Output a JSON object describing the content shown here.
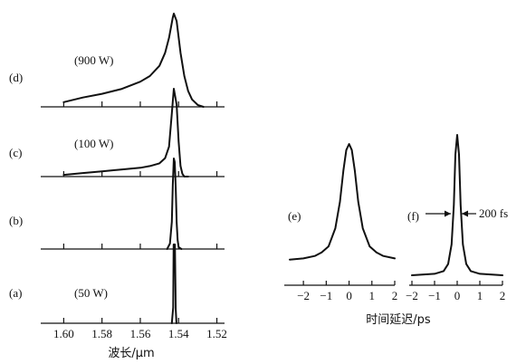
{
  "chart_data": [
    {
      "type": "line",
      "name": "spectra",
      "xlabel": "波长/μm",
      "xlim": [
        1.612,
        1.516
      ],
      "x_reversed": true,
      "x_ticks": [
        1.6,
        1.58,
        1.56,
        1.54,
        1.52
      ],
      "x_tick_labels": [
        "1.60",
        "1.58",
        "1.56",
        "1.54",
        "1.52"
      ],
      "panels": [
        {
          "label": "(d)",
          "annotation": "(900 W)",
          "x": [
            1.6,
            1.59,
            1.58,
            1.57,
            1.56,
            1.555,
            1.55,
            1.547,
            1.545,
            1.543,
            1.5425,
            1.541,
            1.539,
            1.537,
            1.535,
            1.533,
            1.53,
            1.527
          ],
          "y": [
            0.05,
            0.1,
            0.14,
            0.19,
            0.27,
            0.33,
            0.44,
            0.58,
            0.74,
            0.96,
            1.0,
            0.92,
            0.58,
            0.33,
            0.17,
            0.08,
            0.02,
            0.0
          ]
        },
        {
          "label": "(c)",
          "annotation": "(100 W)",
          "x": [
            1.6,
            1.59,
            1.58,
            1.57,
            1.56,
            1.555,
            1.55,
            1.547,
            1.545,
            1.5435,
            1.5425,
            1.541,
            1.54,
            1.539,
            1.538,
            1.537,
            1.535
          ],
          "y": [
            0.02,
            0.04,
            0.06,
            0.08,
            0.1,
            0.12,
            0.15,
            0.21,
            0.34,
            0.72,
            1.0,
            0.82,
            0.4,
            0.12,
            0.03,
            0.0,
            0.0
          ]
        },
        {
          "label": "(b)",
          "annotation": "",
          "x": [
            1.546,
            1.5445,
            1.5435,
            1.543,
            1.5425,
            1.542,
            1.5415,
            1.541,
            1.5405,
            1.54,
            1.5385
          ],
          "y": [
            0.0,
            0.06,
            0.3,
            0.72,
            1.0,
            0.96,
            0.68,
            0.3,
            0.1,
            0.02,
            0.0
          ]
        },
        {
          "label": "(a)",
          "annotation": "(50 W)",
          "x": [
            1.5435,
            1.5428,
            1.5426,
            1.5422,
            1.5419,
            1.5415,
            1.5411
          ],
          "y": [
            0.0,
            0.2,
            1.0,
            1.0,
            1.0,
            0.18,
            0.0
          ]
        }
      ]
    },
    {
      "type": "line",
      "name": "autocorrelation",
      "xlabel": "时间延迟/ps",
      "x_ticks": [
        -2,
        -1,
        0,
        1,
        2
      ],
      "x_tick_labels": [
        "−2",
        "−1",
        "0",
        "1",
        "2"
      ],
      "panels": [
        {
          "label": "(e)",
          "xlim": [
            -2.6,
            2.0
          ],
          "x": [
            -2.6,
            -2.0,
            -1.5,
            -1.2,
            -0.9,
            -0.6,
            -0.4,
            -0.25,
            -0.12,
            0.0,
            0.12,
            0.25,
            0.4,
            0.6,
            0.9,
            1.2,
            1.5,
            2.0
          ],
          "y": [
            0.04,
            0.05,
            0.07,
            0.1,
            0.15,
            0.3,
            0.52,
            0.78,
            0.95,
            1.0,
            0.95,
            0.78,
            0.52,
            0.3,
            0.15,
            0.1,
            0.07,
            0.05
          ]
        },
        {
          "label": "(f)",
          "annotation": "200 fs",
          "xlim": [
            -2.0,
            2.0
          ],
          "x": [
            -2.0,
            -1.0,
            -0.6,
            -0.4,
            -0.25,
            -0.15,
            -0.08,
            0.0,
            0.08,
            0.15,
            0.25,
            0.4,
            0.6,
            1.0,
            2.0
          ],
          "y": [
            0.0,
            0.01,
            0.03,
            0.08,
            0.22,
            0.5,
            0.86,
            1.0,
            0.86,
            0.5,
            0.22,
            0.08,
            0.03,
            0.01,
            0.0
          ]
        }
      ]
    }
  ]
}
